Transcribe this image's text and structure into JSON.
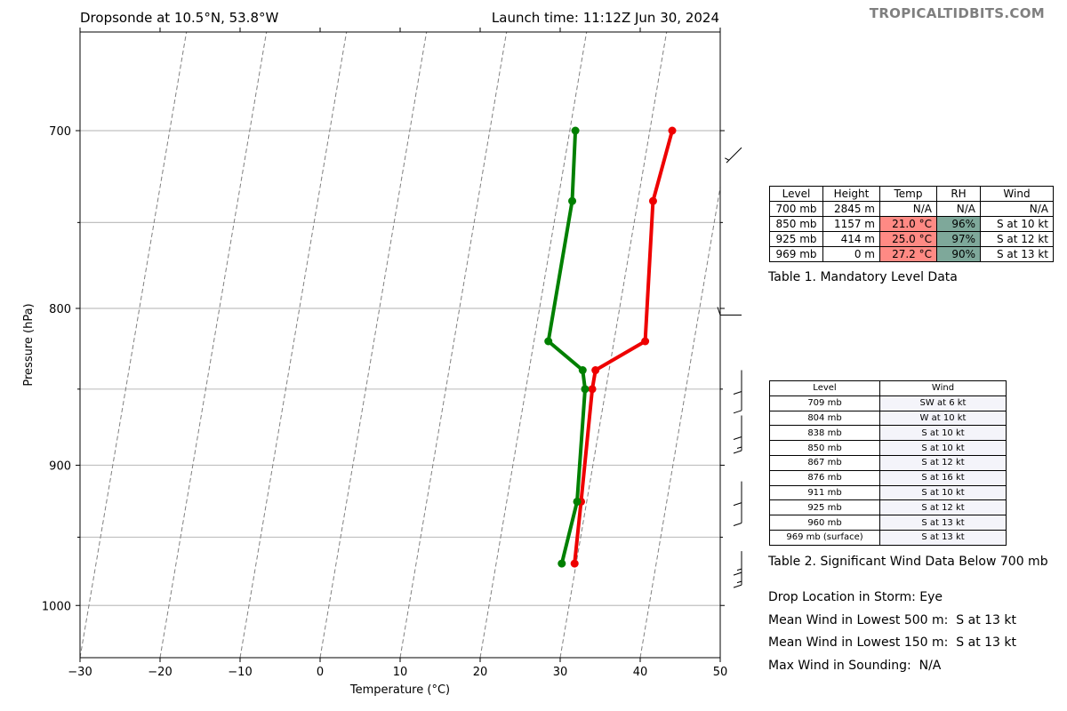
{
  "header": {
    "left_title": "Dropsonde at 10.5°N, 53.8°W",
    "right_title": "Launch time: 11:12Z Jun 30, 2024",
    "brand": "TROPICALTIDBITS.COM"
  },
  "colors": {
    "temperature": "#ee0000",
    "dewpoint": "#008000",
    "temp_cell": "#ff8a84",
    "rh_cell": "#7ea89a",
    "sig_wind_cell": "#f4f4fa",
    "brand": "#7f7f7f"
  },
  "chart_data": {
    "type": "skew-t",
    "xlabel": "Temperature (°C)",
    "ylabel": "Pressure (hPa)",
    "xlim": [
      -30,
      50
    ],
    "ylim": [
      1040,
      650
    ],
    "x_ticks": [
      "−30",
      "−20",
      "−10",
      "0",
      "10",
      "20",
      "30",
      "40",
      "50"
    ],
    "x_tick_values": [
      -30,
      -20,
      -10,
      0,
      10,
      20,
      30,
      40,
      50
    ],
    "y_ticks": [
      "700",
      "800",
      "900",
      "1000"
    ],
    "y_tick_values": [
      700,
      800,
      900,
      1000
    ],
    "grid_pressures": [
      700,
      750,
      800,
      850,
      900,
      950,
      1000
    ],
    "isotherm_bottom_temps": [
      -30,
      -20,
      -10,
      0,
      10,
      20,
      30,
      40,
      50,
      60,
      70,
      80,
      90
    ],
    "series": [
      {
        "key": "temperature",
        "points": [
          {
            "p": 700,
            "t": 32.8
          },
          {
            "p": 738,
            "t": 31.9
          },
          {
            "p": 820,
            "t": 33.9
          },
          {
            "p": 838,
            "t": 28.3
          },
          {
            "p": 850,
            "t": 28.3
          },
          {
            "p": 925,
            "t": 29.3
          },
          {
            "p": 969,
            "t": 29.8
          }
        ]
      },
      {
        "key": "dewpoint",
        "points": [
          {
            "p": 700,
            "t": 20.7
          },
          {
            "p": 738,
            "t": 21.8
          },
          {
            "p": 820,
            "t": 21.8
          },
          {
            "p": 838,
            "t": 26.7
          },
          {
            "p": 850,
            "t": 27.4
          },
          {
            "p": 925,
            "t": 28.8
          },
          {
            "p": 969,
            "t": 28.2
          }
        ]
      }
    ],
    "wind_barbs": [
      {
        "p": 709,
        "dir": "SW",
        "kt": 6
      },
      {
        "p": 804,
        "dir": "W",
        "kt": 10
      },
      {
        "p": 838,
        "dir": "S",
        "kt": 10
      },
      {
        "p": 850,
        "dir": "S",
        "kt": 10
      },
      {
        "p": 867,
        "dir": "S",
        "kt": 12
      },
      {
        "p": 876,
        "dir": "S",
        "kt": 16
      },
      {
        "p": 911,
        "dir": "S",
        "kt": 10
      },
      {
        "p": 925,
        "dir": "S",
        "kt": 12
      },
      {
        "p": 960,
        "dir": "S",
        "kt": 13
      },
      {
        "p": 969,
        "dir": "S",
        "kt": 13
      }
    ]
  },
  "mandatory_table": {
    "headers": [
      "Level",
      "Height",
      "Temp",
      "RH",
      "Wind"
    ],
    "rows": [
      {
        "level": "700 mb",
        "height": "2845 m",
        "temp": "N/A",
        "rh": "N/A",
        "wind": "N/A",
        "shaded": false
      },
      {
        "level": "850 mb",
        "height": "1157 m",
        "temp": "21.0 °C",
        "rh": "96%",
        "wind": "S at 10 kt",
        "shaded": true
      },
      {
        "level": "925 mb",
        "height": "414 m",
        "temp": "25.0 °C",
        "rh": "97%",
        "wind": "S at 12 kt",
        "shaded": true
      },
      {
        "level": "969 mb",
        "height": "0 m",
        "temp": "27.2 °C",
        "rh": "90%",
        "wind": "S at 13 kt",
        "shaded": true
      }
    ],
    "caption": "Table 1. Mandatory Level Data"
  },
  "significant_wind_table": {
    "headers": [
      "Level",
      "Wind"
    ],
    "rows": [
      {
        "level": "709 mb",
        "wind": "SW at 6 kt"
      },
      {
        "level": "804 mb",
        "wind": "W at 10 kt"
      },
      {
        "level": "838 mb",
        "wind": "S at 10 kt"
      },
      {
        "level": "850 mb",
        "wind": "S at 10 kt"
      },
      {
        "level": "867 mb",
        "wind": "S at 12 kt"
      },
      {
        "level": "876 mb",
        "wind": "S at 16 kt"
      },
      {
        "level": "911 mb",
        "wind": "S at 10 kt"
      },
      {
        "level": "925 mb",
        "wind": "S at 12 kt"
      },
      {
        "level": "960 mb",
        "wind": "S at 13 kt"
      },
      {
        "level": "969 mb (surface)",
        "wind": "S at 13 kt"
      }
    ],
    "caption": "Table 2. Significant Wind Data Below 700 mb"
  },
  "storm_info": {
    "drop_location": "Drop Location in Storm: Eye",
    "mean_wind_500": "Mean Wind in Lowest 500 m:  S at 13 kt",
    "mean_wind_150": "Mean Wind in Lowest 150 m:  S at 13 kt",
    "max_wind": "Max Wind in Sounding:  N/A"
  }
}
